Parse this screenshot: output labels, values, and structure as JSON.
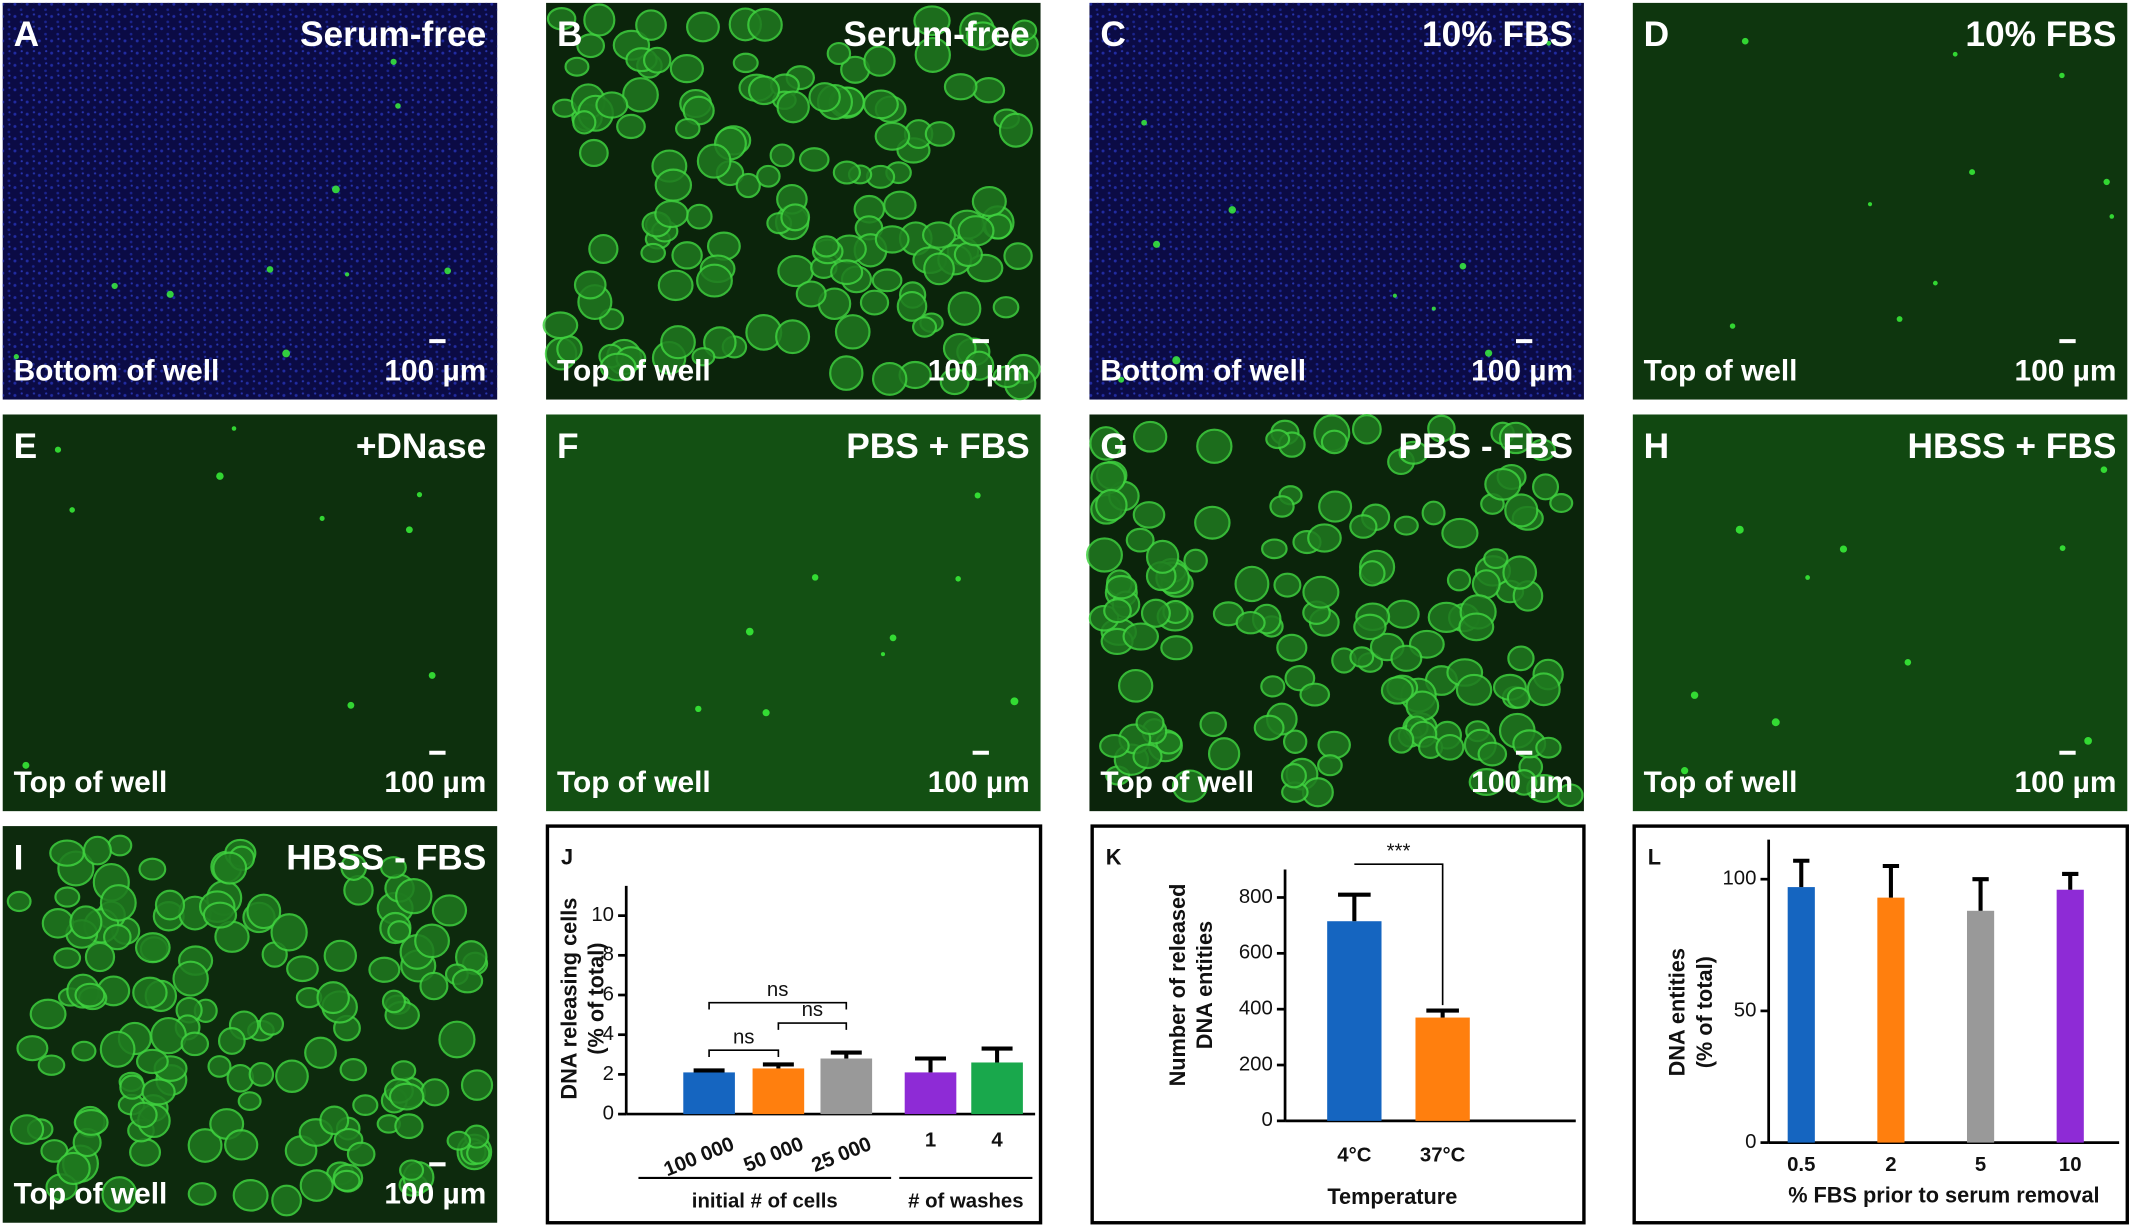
{
  "images": [
    {
      "letter": "A",
      "condition": "Serum-free",
      "location": "Bottom of well",
      "scale": "100 µm",
      "color": "#0b0b45"
    },
    {
      "letter": "B",
      "condition": "Serum-free",
      "location": "Top of well",
      "scale": "100 µm",
      "color": "#0b240b"
    },
    {
      "letter": "C",
      "condition": "10% FBS",
      "location": "Bottom of well",
      "scale": "100 µm",
      "color": "#0b0b45"
    },
    {
      "letter": "D",
      "condition": "10% FBS",
      "location": "Top of well",
      "scale": "100 µm",
      "color": "#0e360e"
    },
    {
      "letter": "E",
      "condition": "+DNase",
      "location": "Top of well",
      "scale": "100 µm",
      "color": "#0d300d"
    },
    {
      "letter": "F",
      "condition": "PBS + FBS",
      "location": "Top of well",
      "scale": "100 µm",
      "color": "#135013"
    },
    {
      "letter": "G",
      "condition": "PBS - FBS",
      "location": "Top of well",
      "scale": "100 µm",
      "color": "#0b240b"
    },
    {
      "letter": "H",
      "condition": "HBSS + FBS",
      "location": "Top of well",
      "scale": "100 µm",
      "color": "#114811"
    },
    {
      "letter": "I",
      "condition": "HBSS - FBS",
      "location": "Top of well",
      "scale": "100 µm",
      "color": "#0d2a0d"
    }
  ],
  "chart_data": [
    {
      "type": "bar",
      "panel_label": "J",
      "ylabel": [
        "DNA releasing cells",
        "(% of total)"
      ],
      "categories": [
        "100 000",
        "50 000",
        "25 000",
        "1",
        "4"
      ],
      "values": [
        2.1,
        2.3,
        2.8,
        2.1,
        2.6
      ],
      "error": [
        0.1,
        0.2,
        0.3,
        0.7,
        0.7
      ],
      "colors": [
        "#1565c0",
        "#ff7f0e",
        "#999999",
        "#8e2bd6",
        "#19a84c"
      ],
      "ylim": [
        0,
        11.5
      ],
      "yticks": [
        0,
        2,
        4,
        6,
        8,
        10
      ],
      "group_labels": [
        "initial # of cells",
        "# of washes"
      ],
      "annotations": [
        "ns",
        "ns",
        "ns"
      ]
    },
    {
      "type": "bar",
      "panel_label": "K",
      "ylabel": [
        "Number of released",
        "DNA entities"
      ],
      "xlabel": "Temperature",
      "categories": [
        "4°C",
        "37°C"
      ],
      "values": [
        715,
        370
      ],
      "error": [
        95,
        25
      ],
      "colors": [
        "#1565c0",
        "#ff7f0e"
      ],
      "ylim": [
        0,
        900
      ],
      "yticks": [
        0,
        200,
        400,
        600,
        800
      ],
      "annotations": [
        "***"
      ]
    },
    {
      "type": "bar",
      "panel_label": "L",
      "ylabel": [
        "DNA entities",
        "(% of total)"
      ],
      "xlabel": "% FBS prior to serum removal",
      "categories": [
        "0.5",
        "2",
        "5",
        "10"
      ],
      "values": [
        97,
        93,
        88,
        96
      ],
      "error": [
        10,
        12,
        12,
        6
      ],
      "colors": [
        "#1565c0",
        "#ff7f0e",
        "#999999",
        "#8e2bd6"
      ],
      "ylim": [
        0,
        115
      ],
      "yticks": [
        0,
        50,
        100
      ]
    }
  ]
}
